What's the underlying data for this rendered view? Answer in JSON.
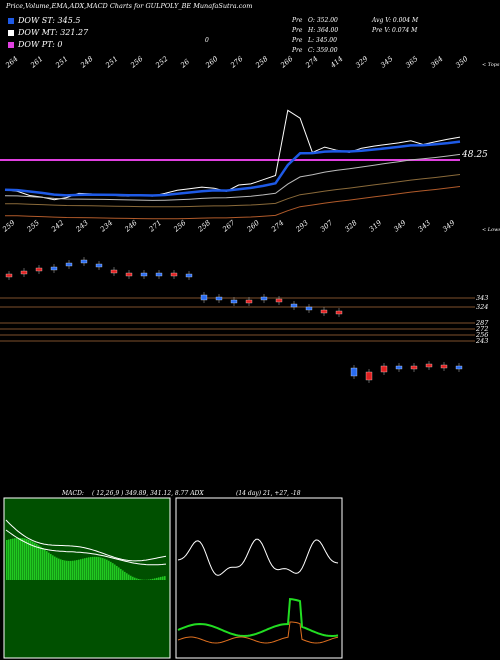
{
  "header": {
    "title": "Price,Volume,EMA,ADX,MACD Charts for GULPOLY_BE MunafaSutra.com"
  },
  "legend": [
    {
      "label": "DOW ST: 345.5",
      "color": "#1e5ae6"
    },
    {
      "label": "DOW MT: 321.27",
      "color": "#ffffff"
    },
    {
      "label": "DOW PT: 0",
      "color": "#e040e0"
    }
  ],
  "ohlc": {
    "open": "O: 352.00",
    "high": "H: 364.00",
    "low": "L: 345.00",
    "close": "C: 359.00",
    "prefix": "Pre",
    "avg_volume": "Avg V: 0.004  M",
    "prev_volume": "V: 0.074  M",
    "marker": "0"
  },
  "chart_data": [
    {
      "type": "candlestick",
      "panel": "price",
      "top_labels": [
        "264",
        "261",
        "251",
        "248",
        "251",
        "256",
        "252",
        "26",
        "260",
        "276",
        "258",
        "266",
        "274",
        "414",
        "329",
        "345",
        "365",
        "364",
        "350"
      ],
      "bottom_labels": [
        "259",
        "255",
        "242",
        "243",
        "234",
        "246",
        "271",
        "256",
        "258",
        "267",
        "260",
        "274",
        "293",
        "307",
        "328",
        "319",
        "349",
        "343",
        "349"
      ],
      "right_labels": {
        "top": "< Tops",
        "bottom": "< Lows",
        "level": "48.25"
      },
      "price_axis": [
        "343",
        "324",
        "287",
        "272",
        "256",
        "243"
      ],
      "close": [
        259,
        256,
        248,
        245,
        240,
        244,
        252,
        251,
        249,
        248,
        247,
        248,
        247,
        252,
        258,
        261,
        264,
        262,
        256,
        268,
        270,
        278,
        286,
        410,
        395,
        330,
        340,
        334,
        330,
        338,
        342,
        345,
        348,
        352,
        345,
        350,
        355,
        359
      ],
      "candles": [
        {
          "o": 274,
          "c": 276,
          "up": false
        },
        {
          "o": 272,
          "c": 271,
          "up": false
        },
        {
          "o": 270,
          "c": 268,
          "up": false
        },
        {
          "o": 268,
          "c": 267,
          "up": true
        },
        {
          "o": 265,
          "c": 263,
          "up": true
        },
        {
          "o": 262,
          "c": 260,
          "up": true
        },
        {
          "o": 264,
          "c": 266,
          "up": true
        },
        {
          "o": 270,
          "c": 272,
          "up": false
        },
        {
          "o": 273,
          "c": 274,
          "up": false
        },
        {
          "o": 274,
          "c": 273,
          "up": true
        },
        {
          "o": 273,
          "c": 274,
          "up": true
        },
        {
          "o": 274,
          "c": 273,
          "up": false
        },
        {
          "o": 274,
          "c": 274,
          "up": true
        },
        {
          "o": 300,
          "c": 295,
          "up": true
        },
        {
          "o": 297,
          "c": 299,
          "up": true
        },
        {
          "o": 300,
          "c": 301,
          "up": true
        },
        {
          "o": 302,
          "c": 300,
          "up": false
        },
        {
          "o": 298,
          "c": 297,
          "up": true
        },
        {
          "o": 299,
          "c": 301,
          "up": false
        },
        {
          "o": 306,
          "c": 304,
          "up": true
        },
        {
          "o": 308,
          "c": 307,
          "up": true
        },
        {
          "o": 310,
          "c": 311,
          "up": false
        },
        {
          "o": 311,
          "c": 313,
          "up": false
        },
        {
          "o": 376,
          "c": 368,
          "up": true
        },
        {
          "o": 372,
          "c": 380,
          "up": false
        },
        {
          "o": 372,
          "c": 366,
          "up": false
        },
        {
          "o": 366,
          "c": 368,
          "up": true
        },
        {
          "o": 367,
          "c": 366,
          "up": false
        },
        {
          "o": 366,
          "c": 364,
          "up": false
        },
        {
          "o": 365,
          "c": 366,
          "up": false
        },
        {
          "o": 366,
          "c": 368,
          "up": true
        }
      ]
    },
    {
      "type": "macd",
      "panel": "macd",
      "label": "MACD:",
      "values": "( 12,26,9 ) 349.89,  341.12,  8.77 ADX"
    },
    {
      "type": "adx",
      "panel": "adx",
      "values": "(14  day) 21,  +27,  -18"
    }
  ]
}
